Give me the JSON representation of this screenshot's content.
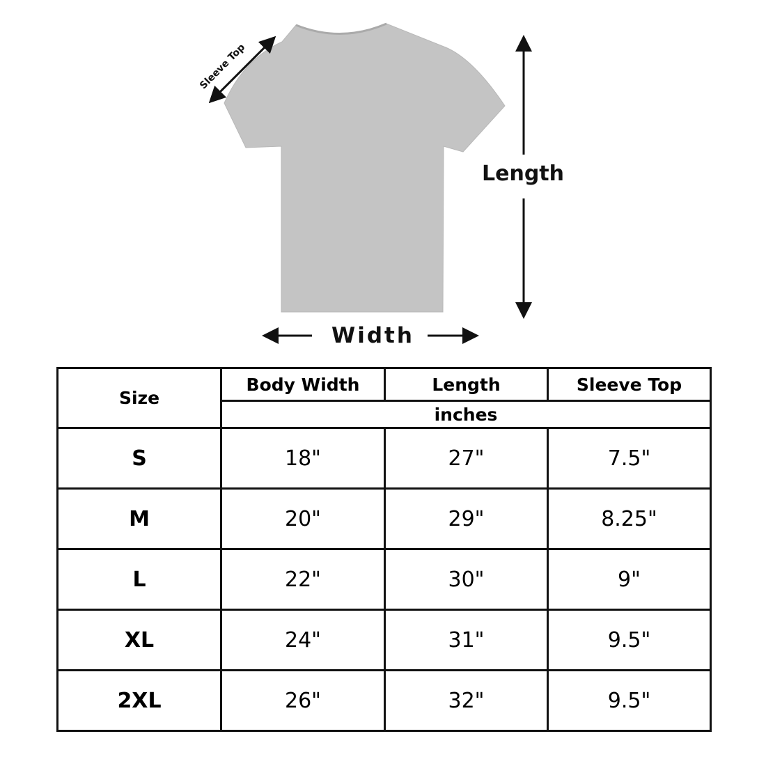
{
  "diagram": {
    "sleeve_label": "Sleeve Top",
    "length_label": "Length",
    "width_label": "Width",
    "shirt_color": "#c4c4c4"
  },
  "table": {
    "headers": {
      "size": "Size",
      "body_width": "Body Width",
      "length": "Length",
      "sleeve_top": "Sleeve Top",
      "unit": "inches"
    },
    "rows": [
      {
        "size": "S",
        "body_width": "18\"",
        "length": "27\"",
        "sleeve_top": "7.5\""
      },
      {
        "size": "M",
        "body_width": "20\"",
        "length": "29\"",
        "sleeve_top": "8.25\""
      },
      {
        "size": "L",
        "body_width": "22\"",
        "length": "30\"",
        "sleeve_top": "9\""
      },
      {
        "size": "XL",
        "body_width": "24\"",
        "length": "31\"",
        "sleeve_top": "9.5\""
      },
      {
        "size": "2XL",
        "body_width": "26\"",
        "length": "32\"",
        "sleeve_top": "9.5\""
      }
    ]
  }
}
